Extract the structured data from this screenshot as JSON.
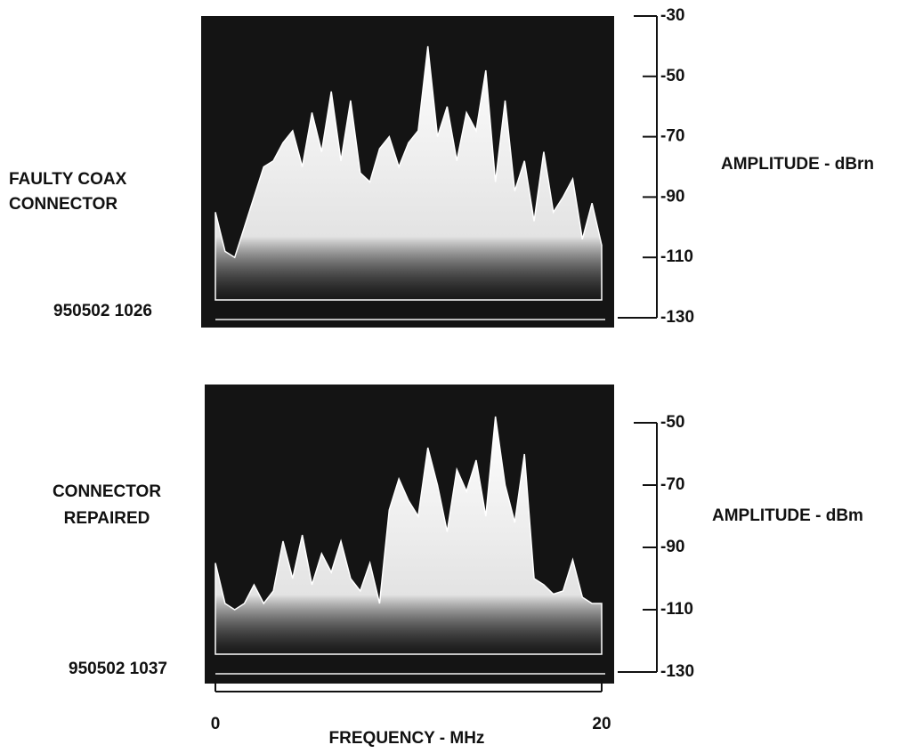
{
  "chart_data": [
    {
      "type": "area",
      "title_lines": [
        "FAULTY COAX",
        "CONNECTOR"
      ],
      "timestamp": "950502 1026",
      "ylabel": "AMPLITUDE - dBrn",
      "ylim": [
        -130,
        -30
      ],
      "yticks": [
        -30,
        -50,
        -70,
        -90,
        -110,
        -130
      ],
      "xlim": [
        0,
        20
      ],
      "color": "#ffffff",
      "x": [
        0,
        0.5,
        1,
        1.5,
        2,
        2.5,
        3,
        3.5,
        4,
        4.5,
        5,
        5.5,
        6,
        6.5,
        7,
        7.5,
        8,
        8.5,
        9,
        9.5,
        10,
        10.5,
        11,
        11.5,
        12,
        12.5,
        13,
        13.5,
        14,
        14.5,
        15,
        15.5,
        16,
        16.5,
        17,
        17.5,
        18,
        18.5,
        19,
        19.5,
        20
      ],
      "values": [
        -95,
        -108,
        -110,
        -100,
        -90,
        -80,
        -78,
        -72,
        -68,
        -80,
        -62,
        -75,
        -55,
        -78,
        -58,
        -82,
        -85,
        -74,
        -70,
        -80,
        -72,
        -68,
        -40,
        -70,
        -60,
        -78,
        -62,
        -68,
        -48,
        -85,
        -58,
        -88,
        -78,
        -98,
        -75,
        -95,
        -90,
        -84,
        -104,
        -92,
        -106
      ]
    },
    {
      "type": "area",
      "title_lines": [
        "CONNECTOR",
        "REPAIRED"
      ],
      "timestamp": "950502 1037",
      "ylabel": "AMPLITUDE - dBm",
      "ylim": [
        -130,
        -50
      ],
      "yticks": [
        -50,
        -70,
        -90,
        -110,
        -130
      ],
      "xlabel": "FREQUENCY - MHz",
      "xlim": [
        0,
        20
      ],
      "xticks": [
        0,
        20
      ],
      "color": "#ffffff",
      "x": [
        0,
        0.5,
        1,
        1.5,
        2,
        2.5,
        3,
        3.5,
        4,
        4.5,
        5,
        5.5,
        6,
        6.5,
        7,
        7.5,
        8,
        8.5,
        9,
        9.5,
        10,
        10.5,
        11,
        11.5,
        12,
        12.5,
        13,
        13.5,
        14,
        14.5,
        15,
        15.5,
        16,
        16.5,
        17,
        17.5,
        18,
        18.5,
        19,
        19.5,
        20
      ],
      "values": [
        -95,
        -108,
        -110,
        -108,
        -102,
        -108,
        -104,
        -88,
        -100,
        -86,
        -102,
        -92,
        -98,
        -88,
        -100,
        -104,
        -95,
        -108,
        -78,
        -68,
        -75,
        -80,
        -58,
        -70,
        -85,
        -65,
        -72,
        -62,
        -80,
        -48,
        -70,
        -82,
        -60,
        -100,
        -102,
        -105,
        -104,
        -94,
        -106,
        -108,
        -108
      ]
    }
  ]
}
